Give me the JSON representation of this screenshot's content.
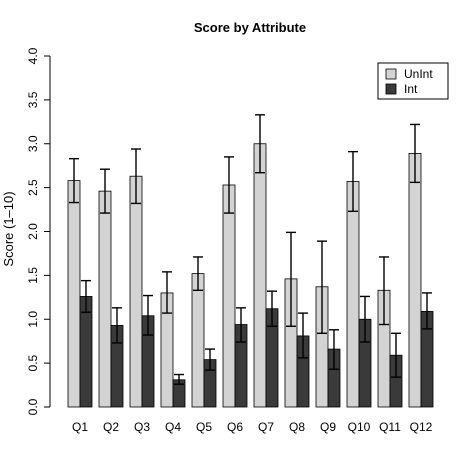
{
  "chart_data": {
    "type": "bar",
    "title": "Score by Attribute",
    "xlabel": "",
    "ylabel": "Score (1–10)",
    "ylim": [
      0,
      4.0
    ],
    "yticks": [
      "0.0",
      "0.5",
      "1.0",
      "1.5",
      "2.0",
      "2.5",
      "3.0",
      "3.5",
      "4.0"
    ],
    "categories": [
      "Q1",
      "Q2",
      "Q3",
      "Q4",
      "Q5",
      "Q6",
      "Q7",
      "Q8",
      "Q9",
      "Q10",
      "Q11",
      "Q12"
    ],
    "grid": false,
    "legend_position": "top-right",
    "error_bars": true,
    "series": [
      {
        "name": "UnInt",
        "color": "#d3d3d3",
        "values": [
          2.58,
          2.46,
          2.63,
          1.3,
          1.52,
          2.53,
          3.0,
          1.46,
          1.37,
          2.57,
          1.33,
          2.89
        ],
        "error_low": [
          2.33,
          2.21,
          2.32,
          1.07,
          1.33,
          2.21,
          2.67,
          0.92,
          0.84,
          2.23,
          0.94,
          2.56
        ],
        "error_high": [
          2.83,
          2.71,
          2.94,
          1.54,
          1.71,
          2.85,
          3.33,
          1.99,
          1.89,
          2.91,
          1.71,
          3.22
        ]
      },
      {
        "name": "Int",
        "color": "#3a3a3a",
        "values": [
          1.26,
          0.93,
          1.04,
          0.31,
          0.54,
          0.94,
          1.12,
          0.81,
          0.66,
          1.0,
          0.59,
          1.09
        ],
        "error_low": [
          1.08,
          0.73,
          0.82,
          0.26,
          0.42,
          0.74,
          0.92,
          0.56,
          0.43,
          0.74,
          0.34,
          0.89
        ],
        "error_high": [
          1.44,
          1.13,
          1.27,
          0.37,
          0.66,
          1.13,
          1.32,
          1.07,
          0.88,
          1.26,
          0.84,
          1.3
        ]
      }
    ]
  }
}
